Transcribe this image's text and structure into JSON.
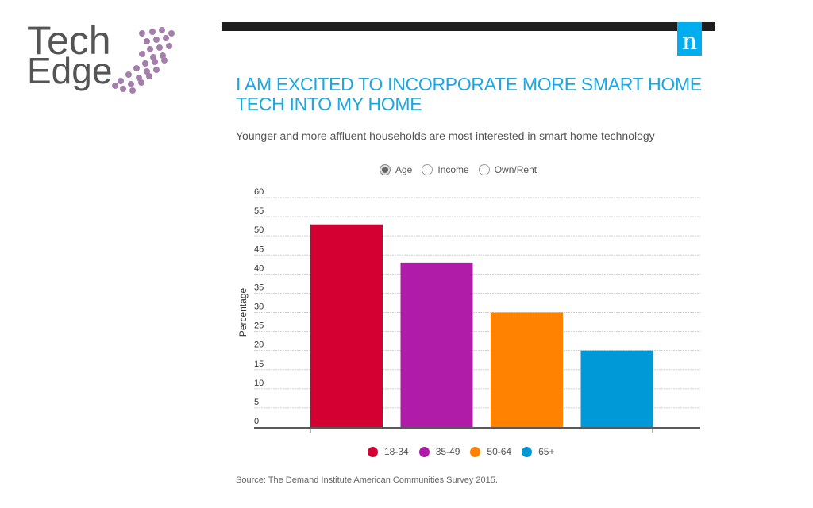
{
  "logo": {
    "line1": "Tech",
    "line2": "Edge",
    "dot_color": "#a47fac"
  },
  "badge": {
    "letter": "n",
    "color": "#00aeef"
  },
  "title": "I AM EXCITED TO INCORPORATE MORE SMART HOME TECH INTO MY HOME",
  "subtitle": "Younger and more affluent households are most interested in smart home technology",
  "filters": [
    {
      "label": "Age",
      "checked": true
    },
    {
      "label": "Income",
      "checked": false
    },
    {
      "label": "Own/Rent",
      "checked": false
    }
  ],
  "source": "Source: The Demand Institute American Communities Survey 2015.",
  "chart_data": {
    "type": "bar",
    "title": "I AM EXCITED TO INCORPORATE MORE SMART HOME TECH INTO MY HOME",
    "xlabel": "",
    "ylabel": "Percentage",
    "ylim": [
      0,
      60
    ],
    "yticks": [
      0,
      5,
      10,
      15,
      20,
      25,
      30,
      35,
      40,
      45,
      50,
      55,
      60
    ],
    "grid": true,
    "legend_position": "bottom",
    "categories": [
      "18-34",
      "35-49",
      "50-64",
      "65+"
    ],
    "values": [
      53,
      43,
      30,
      20
    ],
    "colors": [
      "#d50032",
      "#b01ca8",
      "#ff8300",
      "#0099d8"
    ]
  }
}
